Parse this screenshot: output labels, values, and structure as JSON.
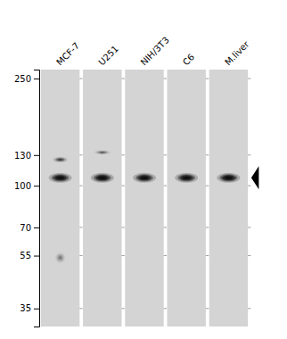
{
  "chart_data": {
    "type": "blot",
    "categories": [
      "MCF-7",
      "U251",
      "NIH/3T3",
      "C6",
      "M.liver"
    ],
    "log": "y",
    "ylim": [
      30,
      270
    ],
    "yticks": [
      250,
      130,
      100,
      70,
      55,
      35
    ],
    "grid": false,
    "bands": [
      {
        "lane": 0,
        "value": 107,
        "intensity": 0.85,
        "width": 0.55,
        "height": 9
      },
      {
        "lane": 0,
        "value": 125,
        "intensity": 0.4,
        "width": 0.35,
        "height": 6
      },
      {
        "lane": 0,
        "value": 54,
        "intensity": 0.18,
        "width": 0.25,
        "height": 5
      },
      {
        "lane": 1,
        "value": 107,
        "intensity": 0.88,
        "width": 0.55,
        "height": 9
      },
      {
        "lane": 1,
        "value": 133,
        "intensity": 0.28,
        "width": 0.38,
        "height": 5
      },
      {
        "lane": 2,
        "value": 107,
        "intensity": 0.85,
        "width": 0.55,
        "height": 9
      },
      {
        "lane": 3,
        "value": 107,
        "intensity": 0.85,
        "width": 0.55,
        "height": 9
      },
      {
        "lane": 4,
        "value": 107,
        "intensity": 0.88,
        "width": 0.55,
        "height": 9
      }
    ],
    "lane_ticks": [
      250,
      130,
      100,
      70,
      55,
      35
    ],
    "arrow": 107
  }
}
